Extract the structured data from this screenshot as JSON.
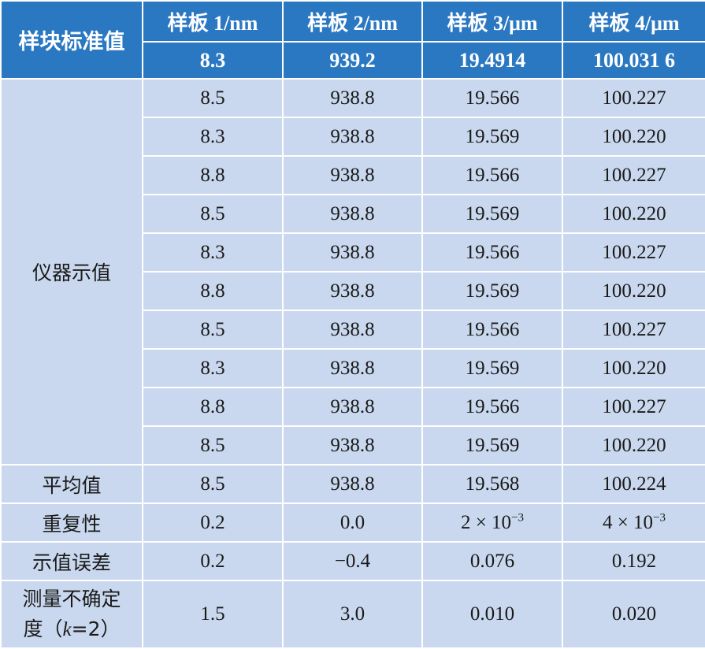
{
  "header": {
    "corner": "样块标准值",
    "columns": [
      "样板 1/nm",
      "样板 2/nm",
      "样板 3/μm",
      "样板 4/μm"
    ],
    "standard_values": [
      "8.3",
      "939.2",
      "19.4914",
      "100.031 6"
    ]
  },
  "readings": {
    "label": "仪器示值",
    "rows": [
      [
        "8.5",
        "938.8",
        "19.566",
        "100.227"
      ],
      [
        "8.3",
        "938.8",
        "19.569",
        "100.220"
      ],
      [
        "8.8",
        "938.8",
        "19.566",
        "100.227"
      ],
      [
        "8.5",
        "938.8",
        "19.569",
        "100.220"
      ],
      [
        "8.3",
        "938.8",
        "19.566",
        "100.227"
      ],
      [
        "8.8",
        "938.8",
        "19.569",
        "100.220"
      ],
      [
        "8.5",
        "938.8",
        "19.566",
        "100.227"
      ],
      [
        "8.3",
        "938.8",
        "19.569",
        "100.220"
      ],
      [
        "8.8",
        "938.8",
        "19.566",
        "100.227"
      ],
      [
        "8.5",
        "938.8",
        "19.569",
        "100.220"
      ]
    ]
  },
  "average": {
    "label": "平均值",
    "values": [
      "8.5",
      "938.8",
      "19.568",
      "100.224"
    ]
  },
  "repeatability": {
    "label": "重复性",
    "values": [
      "0.2",
      "0.0"
    ],
    "sci": [
      {
        "mantissa": "2 × 10",
        "exp": "−3"
      },
      {
        "mantissa": "4 × 10",
        "exp": "−3"
      }
    ]
  },
  "error": {
    "label": "示值误差",
    "values": [
      "0.2",
      "−0.4",
      "0.076",
      "0.192"
    ]
  },
  "uncertainty": {
    "label_line1": "测量不确定",
    "label_pre": "度（",
    "label_k": "k",
    "label_post": "=2）",
    "values": [
      "1.5",
      "3.0",
      "0.010",
      "0.020"
    ]
  },
  "colors": {
    "header_bg": "#2b78c2",
    "body_bg": "#c9d8ee",
    "border": "#ffffff"
  }
}
